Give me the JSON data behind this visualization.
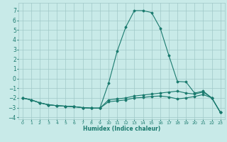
{
  "title": "",
  "xlabel": "Humidex (Indice chaleur)",
  "ylabel": "",
  "bg_color": "#c8eae8",
  "grid_color": "#a0c8c8",
  "line_color": "#1a7a6e",
  "xlim": [
    -0.5,
    23.5
  ],
  "ylim": [
    -4.2,
    7.8
  ],
  "xticks": [
    0,
    1,
    2,
    3,
    4,
    5,
    6,
    7,
    8,
    9,
    10,
    11,
    12,
    13,
    14,
    15,
    16,
    17,
    18,
    19,
    20,
    21,
    22,
    23
  ],
  "yticks": [
    -4,
    -3,
    -2,
    -1,
    0,
    1,
    2,
    3,
    4,
    5,
    6,
    7
  ],
  "series": [
    {
      "x": [
        0,
        1,
        2,
        3,
        4,
        5,
        6,
        7,
        8,
        9,
        10,
        11,
        12,
        13,
        14,
        15,
        16,
        17,
        18,
        19,
        20,
        21,
        22,
        23
      ],
      "y": [
        -2.0,
        -2.2,
        -2.5,
        -2.7,
        -2.8,
        -2.85,
        -2.9,
        -3.0,
        -3.05,
        -3.05,
        -0.5,
        2.8,
        5.3,
        7.0,
        7.0,
        6.8,
        5.2,
        2.4,
        -0.3,
        -0.35,
        -1.5,
        -1.3,
        -2.0,
        -3.5
      ]
    },
    {
      "x": [
        0,
        1,
        2,
        3,
        4,
        5,
        6,
        7,
        8,
        9,
        10,
        11,
        12,
        13,
        14,
        15,
        16,
        17,
        18,
        19,
        20,
        21,
        22,
        23
      ],
      "y": [
        -2.0,
        -2.2,
        -2.5,
        -2.7,
        -2.8,
        -2.85,
        -2.9,
        -3.0,
        -3.05,
        -3.05,
        -2.2,
        -2.1,
        -2.0,
        -1.8,
        -1.7,
        -1.6,
        -1.5,
        -1.4,
        -1.3,
        -1.5,
        -1.6,
        -1.4,
        -2.0,
        -3.5
      ]
    },
    {
      "x": [
        0,
        1,
        2,
        3,
        4,
        5,
        6,
        7,
        8,
        9,
        10,
        11,
        12,
        13,
        14,
        15,
        16,
        17,
        18,
        19,
        20,
        21,
        22,
        23
      ],
      "y": [
        -2.0,
        -2.2,
        -2.5,
        -2.7,
        -2.8,
        -2.85,
        -2.9,
        -3.0,
        -3.05,
        -3.05,
        -2.4,
        -2.3,
        -2.2,
        -2.0,
        -1.95,
        -1.85,
        -1.8,
        -1.9,
        -2.1,
        -2.0,
        -1.85,
        -1.65,
        -2.0,
        -3.5
      ]
    }
  ]
}
